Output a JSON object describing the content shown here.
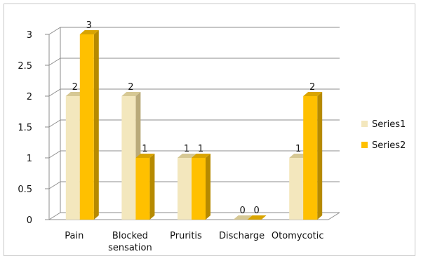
{
  "chart_data": {
    "type": "bar",
    "title": "",
    "xlabel": "",
    "ylabel": "",
    "categories": [
      "Pain",
      "Blocked sensation",
      "Pruritis",
      "Discharge",
      "Otomycotic"
    ],
    "category_lines": [
      [
        "Pain"
      ],
      [
        "Blocked",
        "sensation"
      ],
      [
        "Pruritis"
      ],
      [
        "Discharge"
      ],
      [
        "Otomycotic"
      ]
    ],
    "series": [
      {
        "name": "Series1",
        "values": [
          2,
          2,
          1,
          0,
          1
        ],
        "color": "#F3E7BD",
        "side_color": "#B9AA7A",
        "top_color": "#D6C894"
      },
      {
        "name": "Series2",
        "values": [
          3,
          1,
          1,
          0,
          2
        ],
        "color": "#FFC000",
        "side_color": "#B68A00",
        "top_color": "#D9A400"
      }
    ],
    "ylim": [
      0,
      3
    ],
    "yticks": [
      "0",
      "0.5",
      "1",
      "1.5",
      "2",
      "2.5",
      "3"
    ],
    "data_labels": true,
    "grid": true,
    "legend_position": "right",
    "style": "3d-column"
  }
}
